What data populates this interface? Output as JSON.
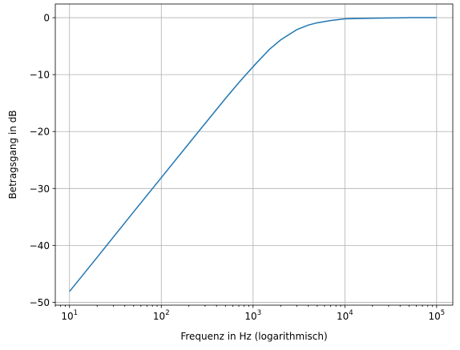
{
  "chart_data": {
    "type": "line",
    "title": "",
    "xlabel": "Frequenz in Hz (logarithmisch)",
    "ylabel": "Betragsgang in dB",
    "xscale": "log",
    "xlim": [
      7,
      150000
    ],
    "ylim": [
      -50.5,
      2.4
    ],
    "grid": true,
    "legend": "none",
    "x_ticks": [
      {
        "base": "10",
        "exp": "1",
        "value": 10
      },
      {
        "base": "10",
        "exp": "2",
        "value": 100
      },
      {
        "base": "10",
        "exp": "3",
        "value": 1000
      },
      {
        "base": "10",
        "exp": "4",
        "value": 10000
      },
      {
        "base": "10",
        "exp": "5",
        "value": 100000
      }
    ],
    "y_ticks": [
      {
        "label": "0",
        "value": 0
      },
      {
        "label": "−10",
        "value": -10
      },
      {
        "label": "−20",
        "value": -20
      },
      {
        "label": "−30",
        "value": -30
      },
      {
        "label": "−40",
        "value": -40
      },
      {
        "label": "−50",
        "value": -50
      }
    ],
    "series": [
      {
        "color": "#1f77b4",
        "x": [
          10,
          20,
          50,
          100,
          200,
          300,
          500,
          700,
          1000,
          1500,
          2000,
          3000,
          4000,
          5000,
          7000,
          10000,
          20000,
          50000,
          100000
        ],
        "y": [
          -48.1,
          -42.1,
          -34.1,
          -28.1,
          -22.1,
          -18.6,
          -14.2,
          -11.4,
          -8.6,
          -5.6,
          -3.9,
          -2.1,
          -1.3,
          -0.9,
          -0.5,
          -0.2,
          -0.1,
          0.0,
          0.0
        ]
      }
    ]
  }
}
